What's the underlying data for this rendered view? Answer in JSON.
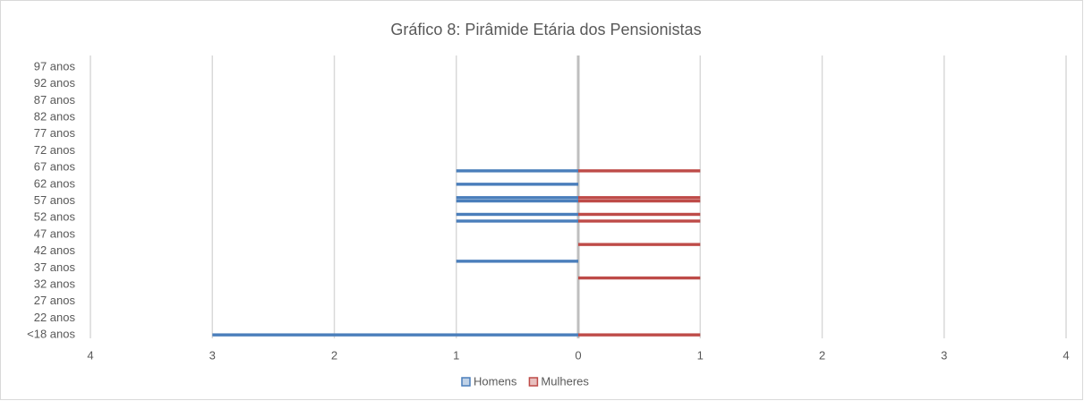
{
  "chart_data": {
    "type": "bar",
    "orientation": "horizontal",
    "title": "Gráfico 8: Pirâmide Etária dos Pensionistas",
    "categories": [
      "<18 anos",
      null,
      null,
      null,
      null,
      "22 anos",
      null,
      null,
      null,
      null,
      "27 anos",
      null,
      null,
      null,
      null,
      "32 anos",
      null,
      null,
      null,
      null,
      "37 anos",
      null,
      null,
      null,
      null,
      "42 anos",
      null,
      null,
      null,
      null,
      "47 anos",
      null,
      null,
      null,
      null,
      "52 anos",
      null,
      null,
      null,
      null,
      "57 anos",
      null,
      null,
      null,
      null,
      "62 anos",
      null,
      null,
      null,
      null,
      "67 anos",
      null,
      null,
      null,
      null,
      "72 anos",
      null,
      null,
      null,
      null,
      "77 anos",
      null,
      null,
      null,
      null,
      "82 anos",
      null,
      null,
      null,
      null,
      "87 anos",
      null,
      null,
      null,
      null,
      "92 anos",
      null,
      null,
      null,
      null,
      "97 anos"
    ],
    "series": [
      {
        "name": "Homens",
        "color": "#4a7ebb",
        "values": [
          -3,
          0,
          0,
          0,
          0,
          0,
          0,
          0,
          0,
          0,
          0,
          0,
          0,
          0,
          0,
          0,
          0,
          0,
          0,
          0,
          0,
          0,
          -1,
          0,
          0,
          0,
          0,
          0,
          0,
          0,
          0,
          0,
          0,
          0,
          -1,
          0,
          -1,
          0,
          0,
          0,
          -1,
          -1,
          0,
          0,
          0,
          -1,
          0,
          0,
          0,
          -1,
          0,
          0,
          0,
          0,
          0,
          0,
          0,
          0,
          0,
          0,
          0,
          0,
          0,
          0,
          0,
          0,
          0,
          0,
          0,
          0,
          0,
          0,
          0,
          0,
          0,
          0,
          0,
          0,
          0,
          0,
          0
        ]
      },
      {
        "name": "Mulheres",
        "color": "#be4b48",
        "values": [
          1,
          0,
          0,
          0,
          0,
          0,
          0,
          0,
          0,
          0,
          0,
          0,
          0,
          0,
          0,
          0,
          0,
          1,
          0,
          0,
          0,
          0,
          0,
          0,
          0,
          0,
          0,
          1,
          0,
          0,
          0,
          0,
          0,
          0,
          1,
          0,
          1,
          0,
          0,
          0,
          1,
          1,
          0,
          0,
          0,
          0,
          0,
          0,
          0,
          1,
          0,
          0,
          0,
          0,
          0,
          0,
          0,
          0,
          0,
          0,
          0,
          0,
          0,
          0,
          0,
          0,
          0,
          0,
          0,
          0,
          0,
          0,
          0,
          0,
          0,
          0,
          0,
          0,
          0,
          0,
          0
        ]
      }
    ],
    "xlim": [
      -4,
      4
    ],
    "xticks": [
      {
        "value": -4,
        "label": "4"
      },
      {
        "value": -3,
        "label": "3"
      },
      {
        "value": -2,
        "label": "2"
      },
      {
        "value": -1,
        "label": "1"
      },
      0,
      1,
      2,
      3,
      4
    ],
    "grid": true,
    "legend": "bottom"
  }
}
